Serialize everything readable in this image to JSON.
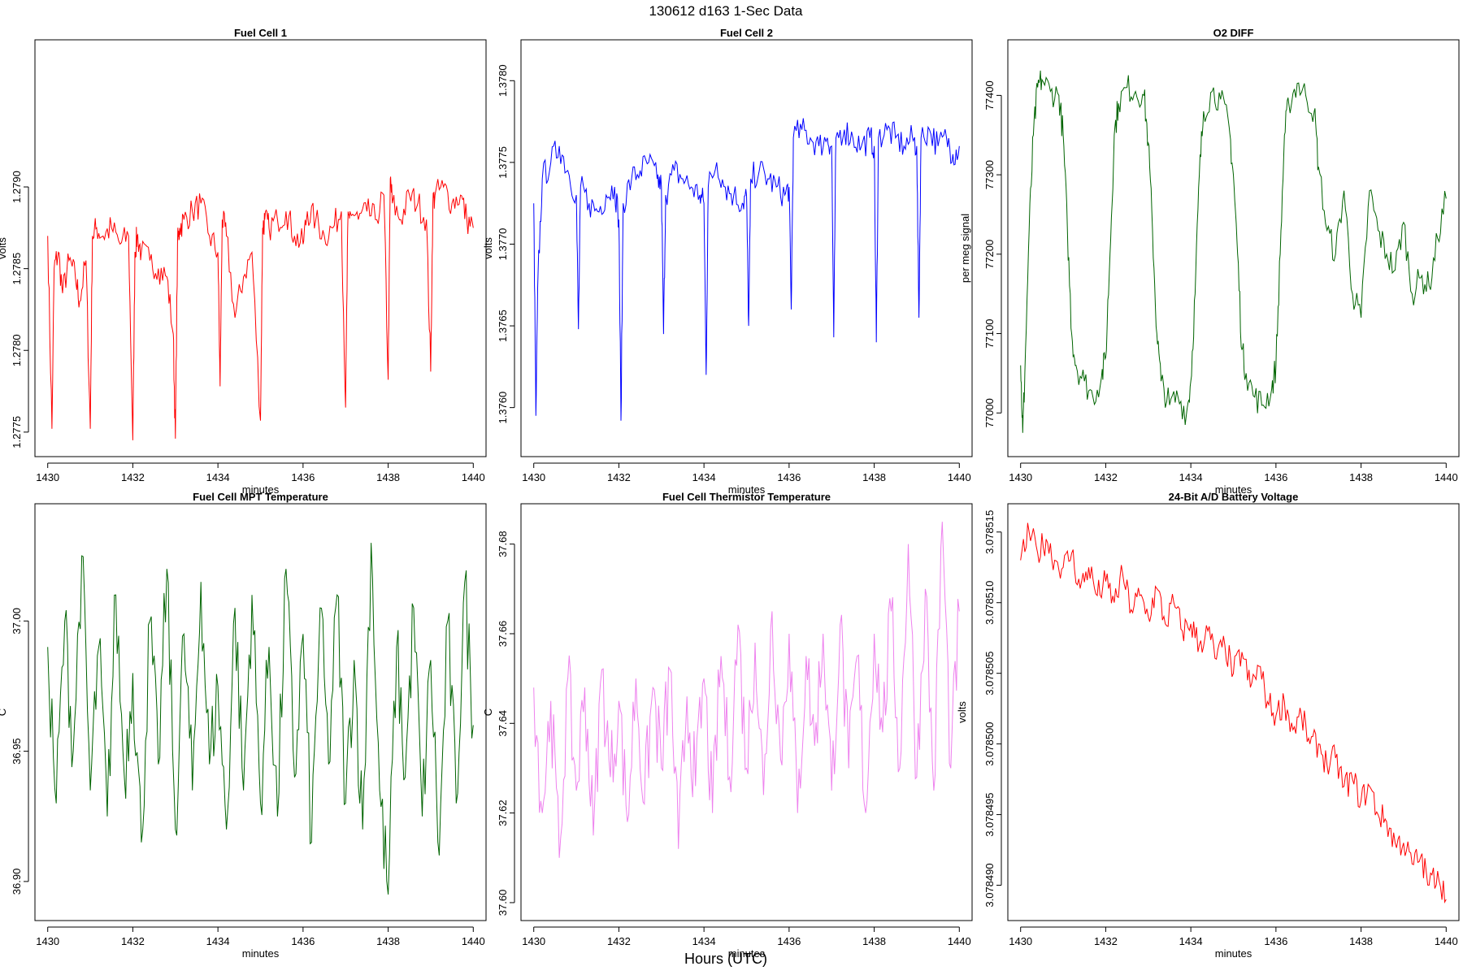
{
  "page_title": "130612   d163   1-Sec Data",
  "footer_label": "Hours (UTC)",
  "chart_data": [
    {
      "type": "line",
      "title": "Fuel Cell 1",
      "xlabel": "minutes",
      "ylabel": "volts",
      "xlim": [
        1429.7,
        1440.3
      ],
      "ylim": [
        1.27735,
        1.2799
      ],
      "xticks": [
        1430,
        1432,
        1434,
        1436,
        1438,
        1440
      ],
      "yticks": [
        1.2775,
        1.278,
        1.2785,
        1.279
      ],
      "yticklabels": [
        "1.2775",
        "1.2780",
        "1.2785",
        "1.2790"
      ],
      "color": "#ff0000",
      "series": [
        {
          "name": "Fuel Cell 1",
          "x": [
            1430.0,
            1430.1,
            1430.15,
            1430.25,
            1430.35,
            1430.5,
            1430.65,
            1430.75,
            1430.9,
            1431.0,
            1431.05,
            1431.15,
            1431.3,
            1431.5,
            1431.7,
            1431.9,
            1432.0,
            1432.05,
            1432.1,
            1432.2,
            1432.4,
            1432.6,
            1432.8,
            1432.95,
            1433.0,
            1433.05,
            1433.1,
            1433.2,
            1433.4,
            1433.6,
            1433.8,
            1434.0,
            1434.05,
            1434.1,
            1434.2,
            1434.4,
            1434.6,
            1434.8,
            1435.0,
            1435.05,
            1435.1,
            1435.2,
            1435.4,
            1435.6,
            1435.8,
            1436.0,
            1436.1,
            1436.3,
            1436.5,
            1436.7,
            1436.9,
            1437.0,
            1437.05,
            1437.1,
            1437.3,
            1437.5,
            1437.7,
            1437.9,
            1438.0,
            1438.05,
            1438.1,
            1438.3,
            1438.5,
            1438.7,
            1438.9,
            1439.0,
            1439.05,
            1439.1,
            1439.3,
            1439.5,
            1439.7,
            1439.85,
            1440.0
          ],
          "y": [
            1.2787,
            1.27752,
            1.2785,
            1.2786,
            1.27835,
            1.27855,
            1.27845,
            1.2783,
            1.27855,
            1.27752,
            1.2787,
            1.27875,
            1.2787,
            1.27875,
            1.27865,
            1.2787,
            1.27745,
            1.2786,
            1.2787,
            1.2786,
            1.27855,
            1.2785,
            1.27845,
            1.2781,
            1.27746,
            1.27865,
            1.27875,
            1.2788,
            1.27885,
            1.2789,
            1.2787,
            1.2786,
            1.27778,
            1.2788,
            1.2787,
            1.2782,
            1.27845,
            1.2786,
            1.27757,
            1.27875,
            1.2788,
            1.27875,
            1.2788,
            1.27885,
            1.2787,
            1.27865,
            1.27885,
            1.2788,
            1.2787,
            1.27875,
            1.27885,
            1.27765,
            1.27875,
            1.27885,
            1.2788,
            1.27885,
            1.2788,
            1.27895,
            1.27782,
            1.27905,
            1.2789,
            1.2788,
            1.27895,
            1.2789,
            1.2788,
            1.27787,
            1.2789,
            1.27895,
            1.279,
            1.2789,
            1.27895,
            1.2788,
            1.27875
          ]
        }
      ]
    },
    {
      "type": "line",
      "title": "Fuel Cell 2",
      "xlabel": "minutes",
      "ylabel": "volts",
      "xlim": [
        1429.7,
        1440.3
      ],
      "ylim": [
        1.3757,
        1.37825
      ],
      "xticks": [
        1430,
        1432,
        1434,
        1436,
        1438,
        1440
      ],
      "yticks": [
        1.376,
        1.3765,
        1.377,
        1.3775,
        1.378
      ],
      "yticklabels": [
        "1.3760",
        "1.3765",
        "1.3770",
        "1.3775",
        "1.3780"
      ],
      "color": "#0000ff",
      "series": [
        {
          "name": "Fuel Cell 2",
          "x": [
            1430.0,
            1430.05,
            1430.1,
            1430.2,
            1430.4,
            1430.6,
            1430.8,
            1431.0,
            1431.05,
            1431.1,
            1431.3,
            1431.5,
            1431.7,
            1431.9,
            1432.0,
            1432.05,
            1432.1,
            1432.3,
            1432.5,
            1432.7,
            1432.9,
            1433.0,
            1433.05,
            1433.1,
            1433.3,
            1433.5,
            1433.7,
            1433.9,
            1434.0,
            1434.05,
            1434.1,
            1434.3,
            1434.5,
            1434.7,
            1434.9,
            1435.0,
            1435.05,
            1435.1,
            1435.3,
            1435.5,
            1435.7,
            1435.9,
            1436.0,
            1436.05,
            1436.1,
            1436.3,
            1436.5,
            1436.7,
            1436.9,
            1437.0,
            1437.05,
            1437.1,
            1437.3,
            1437.5,
            1437.7,
            1437.9,
            1438.0,
            1438.05,
            1438.1,
            1438.3,
            1438.5,
            1438.7,
            1438.9,
            1439.0,
            1439.05,
            1439.1,
            1439.3,
            1439.5,
            1439.7,
            1439.85,
            1440.0
          ],
          "y": [
            1.37725,
            1.37595,
            1.3768,
            1.3774,
            1.3775,
            1.3776,
            1.37745,
            1.3773,
            1.37648,
            1.37735,
            1.37725,
            1.3772,
            1.3773,
            1.37735,
            1.37715,
            1.37592,
            1.37725,
            1.3774,
            1.37745,
            1.3775,
            1.3774,
            1.37735,
            1.37645,
            1.3773,
            1.37745,
            1.3774,
            1.37735,
            1.3773,
            1.37725,
            1.3762,
            1.37735,
            1.3775,
            1.37735,
            1.3773,
            1.37725,
            1.3773,
            1.3765,
            1.3774,
            1.37745,
            1.3774,
            1.37735,
            1.3773,
            1.37735,
            1.3766,
            1.37765,
            1.3777,
            1.37765,
            1.3776,
            1.37765,
            1.3776,
            1.37643,
            1.37765,
            1.3777,
            1.37765,
            1.3776,
            1.37765,
            1.3776,
            1.3764,
            1.37765,
            1.3777,
            1.37765,
            1.3776,
            1.37765,
            1.3776,
            1.37655,
            1.37765,
            1.3777,
            1.3776,
            1.37765,
            1.37755,
            1.3776
          ]
        }
      ]
    },
    {
      "type": "line",
      "title": "O2 DIFF",
      "xlabel": "minutes",
      "ylabel": "per meg signal",
      "xlim": [
        1429.7,
        1440.3
      ],
      "ylim": [
        76945,
        77470
      ],
      "xticks": [
        1430,
        1432,
        1434,
        1436,
        1438,
        1440
      ],
      "yticks": [
        77000,
        77100,
        77200,
        77300,
        77400
      ],
      "yticklabels": [
        "77000",
        "77100",
        "77200",
        "77300",
        "77400"
      ],
      "color": "#006400",
      "series": [
        {
          "name": "O2 DIFF",
          "x": [
            1430.0,
            1430.05,
            1430.1,
            1430.2,
            1430.3,
            1430.4,
            1430.5,
            1430.7,
            1430.9,
            1431.0,
            1431.1,
            1431.2,
            1431.3,
            1431.5,
            1431.7,
            1431.9,
            1432.0,
            1432.1,
            1432.2,
            1432.3,
            1432.5,
            1432.7,
            1432.9,
            1433.0,
            1433.1,
            1433.2,
            1433.3,
            1433.5,
            1433.7,
            1433.9,
            1434.0,
            1434.1,
            1434.2,
            1434.3,
            1434.5,
            1434.7,
            1434.9,
            1435.0,
            1435.1,
            1435.2,
            1435.3,
            1435.5,
            1435.7,
            1435.9,
            1436.0,
            1436.1,
            1436.2,
            1436.3,
            1436.5,
            1436.7,
            1436.9,
            1437.0,
            1437.2,
            1437.4,
            1437.6,
            1437.8,
            1438.0,
            1438.2,
            1438.4,
            1438.6,
            1438.8,
            1439.0,
            1439.2,
            1439.4,
            1439.6,
            1439.8,
            1440.0
          ],
          "y": [
            77060,
            76975,
            77050,
            77230,
            77350,
            77410,
            77420,
            77405,
            77400,
            77350,
            77230,
            77100,
            77060,
            77040,
            77020,
            77045,
            77070,
            77200,
            77350,
            77390,
            77410,
            77405,
            77400,
            77340,
            77230,
            77100,
            77040,
            77010,
            77020,
            77000,
            77040,
            77150,
            77300,
            77380,
            77405,
            77395,
            77360,
            77300,
            77200,
            77080,
            77050,
            77020,
            77010,
            77030,
            77060,
            77200,
            77350,
            77390,
            77415,
            77400,
            77380,
            77310,
            77230,
            77200,
            77280,
            77150,
            77120,
            77280,
            77230,
            77200,
            77180,
            77240,
            77150,
            77170,
            77160,
            77220,
            77270
          ]
        }
      ]
    },
    {
      "type": "line",
      "title": "Fuel Cell MPT Temperature",
      "xlabel": "minutes",
      "ylabel": "C",
      "xlim": [
        1429.7,
        1440.3
      ],
      "ylim": [
        36.885,
        37.045
      ],
      "xticks": [
        1430,
        1432,
        1434,
        1436,
        1438,
        1440
      ],
      "yticks": [
        36.9,
        36.95,
        37.0
      ],
      "yticklabels": [
        "36.90",
        "36.95",
        "37.00"
      ],
      "color": "#006400",
      "series": [
        {
          "name": "Fuel Cell MPT Temperature",
          "x": [
            1430.0,
            1430.2,
            1430.4,
            1430.6,
            1430.8,
            1431.0,
            1431.2,
            1431.4,
            1431.6,
            1431.8,
            1432.0,
            1432.2,
            1432.4,
            1432.6,
            1432.8,
            1433.0,
            1433.2,
            1433.4,
            1433.6,
            1433.8,
            1434.0,
            1434.2,
            1434.4,
            1434.6,
            1434.8,
            1435.0,
            1435.2,
            1435.4,
            1435.6,
            1435.8,
            1436.0,
            1436.2,
            1436.4,
            1436.6,
            1436.8,
            1437.0,
            1437.2,
            1437.4,
            1437.6,
            1437.8,
            1438.0,
            1438.2,
            1438.4,
            1438.6,
            1438.8,
            1439.0,
            1439.2,
            1439.4,
            1439.6,
            1439.8,
            1440.0
          ],
          "y": [
            36.99,
            36.93,
            37.0,
            36.95,
            37.025,
            36.935,
            36.99,
            36.925,
            37.01,
            36.94,
            36.98,
            36.915,
            37.0,
            36.945,
            37.02,
            36.92,
            36.995,
            36.935,
            37.015,
            36.945,
            36.975,
            36.92,
            37.005,
            36.935,
            37.01,
            36.93,
            36.99,
            36.925,
            37.02,
            36.94,
            36.995,
            36.915,
            37.005,
            36.945,
            37.01,
            36.93,
            36.985,
            36.92,
            37.03,
            36.935,
            36.895,
            36.99,
            36.94,
            37.005,
            36.925,
            36.985,
            36.91,
            37.0,
            36.93,
            37.015,
            36.96
          ]
        }
      ]
    },
    {
      "type": "line",
      "title": "Fuel Cell Thermistor Temperature",
      "xlabel": "minutes",
      "ylabel": "C",
      "xlim": [
        1429.7,
        1440.3
      ],
      "ylim": [
        37.596,
        37.689
      ],
      "xticks": [
        1430,
        1432,
        1434,
        1436,
        1438,
        1440
      ],
      "yticks": [
        37.6,
        37.62,
        37.64,
        37.66,
        37.68
      ],
      "yticklabels": [
        "37.60",
        "37.62",
        "37.64",
        "37.66",
        "37.68"
      ],
      "color": "#ee82ee",
      "series": [
        {
          "name": "Fuel Cell Thermistor Temperature",
          "x": [
            1430.0,
            1430.2,
            1430.4,
            1430.6,
            1430.8,
            1431.0,
            1431.2,
            1431.4,
            1431.6,
            1431.8,
            1432.0,
            1432.2,
            1432.4,
            1432.6,
            1432.8,
            1433.0,
            1433.2,
            1433.4,
            1433.6,
            1433.8,
            1434.0,
            1434.2,
            1434.4,
            1434.6,
            1434.8,
            1435.0,
            1435.2,
            1435.4,
            1435.6,
            1435.8,
            1436.0,
            1436.2,
            1436.4,
            1436.6,
            1436.8,
            1437.0,
            1437.2,
            1437.4,
            1437.6,
            1437.8,
            1438.0,
            1438.2,
            1438.4,
            1438.6,
            1438.8,
            1439.0,
            1439.2,
            1439.4,
            1439.6,
            1439.8,
            1440.0
          ],
          "y": [
            37.648,
            37.62,
            37.645,
            37.61,
            37.65,
            37.625,
            37.648,
            37.615,
            37.652,
            37.628,
            37.645,
            37.618,
            37.65,
            37.622,
            37.648,
            37.63,
            37.652,
            37.612,
            37.646,
            37.626,
            37.65,
            37.62,
            37.655,
            37.628,
            37.662,
            37.63,
            37.658,
            37.624,
            37.665,
            37.632,
            37.66,
            37.62,
            37.655,
            37.635,
            37.66,
            37.625,
            37.662,
            37.63,
            37.655,
            37.62,
            37.66,
            37.638,
            37.665,
            37.63,
            37.68,
            37.628,
            37.67,
            37.625,
            37.685,
            37.63,
            37.665
          ]
        }
      ]
    },
    {
      "type": "line",
      "title": "24-Bit A/D Battery Voltage",
      "xlabel": "minutes",
      "ylabel": "volts",
      "xlim": [
        1429.7,
        1440.3
      ],
      "ylim": [
        3.0784875,
        3.078517
      ],
      "xticks": [
        1430,
        1432,
        1434,
        1436,
        1438,
        1440
      ],
      "yticks": [
        3.07849,
        3.078495,
        3.0785,
        3.078505,
        3.07851,
        3.078515
      ],
      "yticklabels": [
        "3.078490",
        "3.078495",
        "3.078500",
        "3.078505",
        "3.078510",
        "3.078515"
      ],
      "color": "#ff0000",
      "series": [
        {
          "name": "24-Bit A/D Battery Voltage",
          "x": [
            1430.0,
            1430.2,
            1430.4,
            1430.6,
            1430.8,
            1431.0,
            1431.2,
            1431.4,
            1431.6,
            1431.8,
            1432.0,
            1432.2,
            1432.4,
            1432.6,
            1432.8,
            1433.0,
            1433.2,
            1433.4,
            1433.6,
            1433.8,
            1434.0,
            1434.2,
            1434.4,
            1434.6,
            1434.8,
            1435.0,
            1435.2,
            1435.4,
            1435.6,
            1435.8,
            1436.0,
            1436.2,
            1436.4,
            1436.6,
            1436.8,
            1437.0,
            1437.2,
            1437.4,
            1437.6,
            1437.8,
            1438.0,
            1438.2,
            1438.4,
            1438.6,
            1438.8,
            1439.0,
            1439.2,
            1439.4,
            1439.6,
            1439.8,
            1440.0
          ],
          "y": [
            3.078513,
            3.078515,
            3.0785135,
            3.0785145,
            3.078513,
            3.0785125,
            3.0785135,
            3.078511,
            3.0785125,
            3.0785105,
            3.0785115,
            3.07851,
            3.078512,
            3.0785095,
            3.0785105,
            3.078509,
            3.078511,
            3.0785085,
            3.07851,
            3.078508,
            3.0785085,
            3.078507,
            3.078508,
            3.078506,
            3.078507,
            3.078505,
            3.0785065,
            3.078504,
            3.0785055,
            3.078503,
            3.078502,
            3.078503,
            3.078501,
            3.078502,
            3.0785,
            3.0785,
            3.0784985,
            3.078499,
            3.078497,
            3.0784975,
            3.078496,
            3.078497,
            3.078495,
            3.0784945,
            3.078493,
            3.078493,
            3.0784915,
            3.078492,
            3.07849,
            3.078491,
            3.078489
          ]
        }
      ]
    }
  ]
}
